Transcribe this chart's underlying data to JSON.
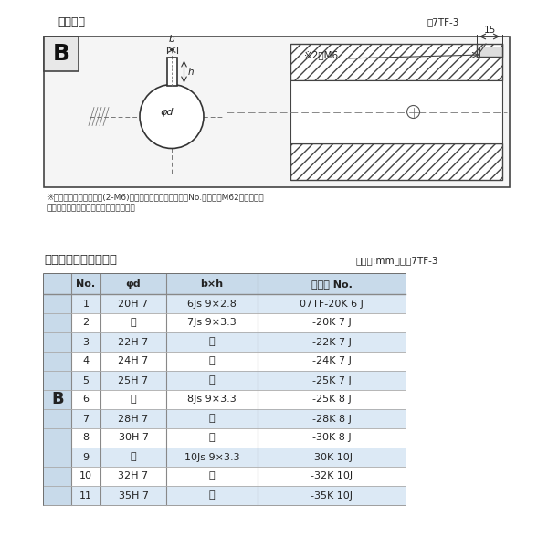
{
  "title_diagram": "軸穴形状",
  "fig_number": "図7TF-3",
  "note_line1": "※セットボルト用タップ(2-M6)が必要な場合は右記コードNo.の末尾にM62を付ける。",
  "note_line2": "（セットボルトは付属されています。）",
  "table_title": "軸穴形状コード一覧表",
  "table_unit": "（単位:mm）　表7TF-3",
  "col_headers": [
    "No.",
    "φd",
    "b×h",
    "コード No."
  ],
  "row_label": "B",
  "rows": [
    [
      "1",
      "20H 7",
      "6Js 9×2.8",
      "07TF-20K 6 J"
    ],
    [
      "2",
      "〃",
      "7Js 9×3.3",
      "-20K 7 J"
    ],
    [
      "3",
      "22H 7",
      "〃",
      "-22K 7 J"
    ],
    [
      "4",
      "24H 7",
      "〃",
      "-24K 7 J"
    ],
    [
      "5",
      "25H 7",
      "〃",
      "-25K 7 J"
    ],
    [
      "6",
      "〃",
      "8Js 9×3.3",
      "-25K 8 J"
    ],
    [
      "7",
      "28H 7",
      "〃",
      "-28K 8 J"
    ],
    [
      "8",
      "30H 7",
      "〃",
      "-30K 8 J"
    ],
    [
      "9",
      "〃",
      "10Js 9×3.3",
      "-30K 10J"
    ],
    [
      "10",
      "32H 7",
      "〃",
      "-32K 10J"
    ],
    [
      "11",
      "35H 7",
      "〃",
      "-35K 10J"
    ]
  ],
  "bg_color_light": "#dce9f5",
  "bg_color_white": "#ffffff",
  "border_color": "#888888",
  "text_color": "#222222",
  "header_bg": "#c8daea",
  "diagram_bg": "#f7f7f7",
  "page_bg": "#ffffff",
  "dim_arrow_color": "#333333",
  "line_color": "#444444",
  "hatch_lw": 0.6
}
